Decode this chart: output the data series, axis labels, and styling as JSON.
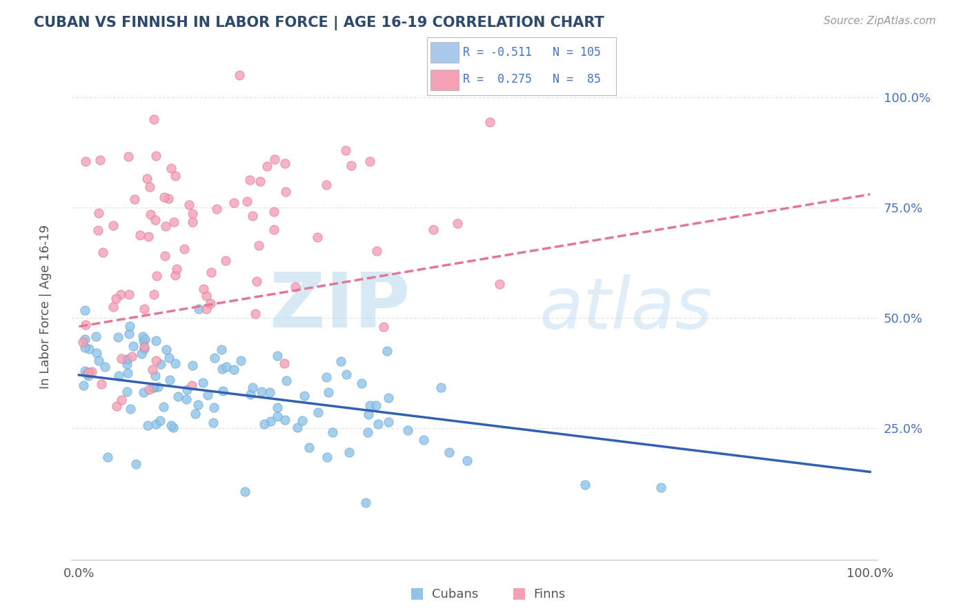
{
  "title": "CUBAN VS FINNISH IN LABOR FORCE | AGE 16-19 CORRELATION CHART",
  "source_text": "Source: ZipAtlas.com",
  "ylabel": "In Labor Force | Age 16-19",
  "watermark_zip": "ZIP",
  "watermark_atlas": "atlas",
  "xlim": [
    0.0,
    1.0
  ],
  "ylim": [
    0.0,
    1.0
  ],
  "cuban_color": "#8fc4e8",
  "cuban_edge_color": "#6aaad4",
  "finn_color": "#f4a0b5",
  "finn_edge_color": "#e07898",
  "cuban_R": -0.511,
  "cuban_N": 105,
  "finn_R": 0.275,
  "finn_N": 85,
  "cuban_line_color": "#3060b0",
  "finn_line_color": "#e07898",
  "legend_box_cuban": "#aac8ea",
  "legend_box_finn": "#f4a0b5",
  "title_color": "#2c4a6e",
  "stats_color": "#4472c4",
  "background_color": "#ffffff",
  "grid_color": "#dddddd",
  "cuban_line_start_y": 0.37,
  "cuban_line_end_y": 0.15,
  "finn_line_start_y": 0.48,
  "finn_line_end_y": 0.78
}
